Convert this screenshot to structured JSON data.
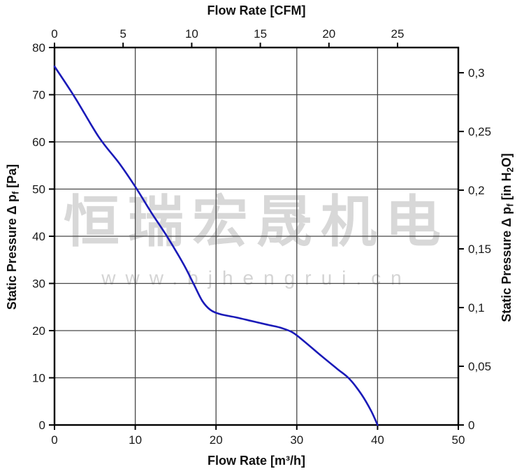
{
  "chart_data": {
    "type": "line",
    "title": "",
    "grid": true,
    "legend": false,
    "bottom_axis": {
      "title": "Flow Rate [m³/h]",
      "min": 0,
      "max": 50,
      "tick_values": [
        0,
        10,
        20,
        30,
        40,
        50
      ],
      "tick_labels": [
        "0",
        "10",
        "20",
        "30",
        "40",
        "50"
      ],
      "grid_values": [
        10,
        20,
        30,
        40
      ]
    },
    "left_axis": {
      "title_p1": "Static Pressure Δ p",
      "title_sub": "f",
      "title_p2": " [Pa]",
      "min": 0,
      "max": 80,
      "tick_values": [
        0,
        10,
        20,
        30,
        40,
        50,
        60,
        70,
        80
      ],
      "tick_labels": [
        "0",
        "10",
        "20",
        "30",
        "40",
        "50",
        "60",
        "70",
        "80"
      ],
      "grid_values": [
        10,
        20,
        30,
        40,
        50,
        60,
        70
      ]
    },
    "top_axis": {
      "title": "Flow Rate [CFM]",
      "tick_values": [
        0,
        5,
        10,
        15,
        20,
        25
      ],
      "tick_labels": [
        "0",
        "5",
        "10",
        "15",
        "20",
        "25"
      ],
      "to_m3h": 1.699
    },
    "right_axis": {
      "title_p1": "Static Pressure Δ p",
      "title_sub": "f",
      "title_p2": " [in H",
      "title_sub2": "2",
      "title_p3": "O]",
      "tick_values": [
        0,
        0.05,
        0.1,
        0.15,
        0.2,
        0.25,
        0.3
      ],
      "tick_labels": [
        "0",
        "0,05",
        "0,1",
        "0,15",
        "0,2",
        "0,25",
        "0,3"
      ],
      "to_pa": 248.84
    },
    "series": [
      {
        "name": "fan performance curve",
        "color": "#1a1ab8",
        "points": [
          [
            0,
            76
          ],
          [
            2.5,
            69.5
          ],
          [
            5.5,
            61
          ],
          [
            8,
            55.5
          ],
          [
            10,
            50.5
          ],
          [
            12,
            45
          ],
          [
            14,
            39.8
          ],
          [
            16,
            34
          ],
          [
            17.2,
            30
          ],
          [
            18.3,
            26.3
          ],
          [
            19.3,
            24.4
          ],
          [
            20.5,
            23.5
          ],
          [
            22.5,
            22.8
          ],
          [
            24.5,
            22
          ],
          [
            26.5,
            21.2
          ],
          [
            28,
            20.6
          ],
          [
            29.5,
            19.6
          ],
          [
            31,
            17.6
          ],
          [
            33,
            14.7
          ],
          [
            35,
            11.9
          ],
          [
            36.5,
            9.8
          ],
          [
            38,
            6.5
          ],
          [
            39.2,
            3
          ],
          [
            40,
            0
          ]
        ]
      }
    ],
    "colors": {
      "curve": "#1a1ab8",
      "grid": "#474747",
      "axis": "#000000",
      "text": "#1a1a1a",
      "watermark_cn": "#d8d8d8",
      "watermark_url": "#d4d4d4"
    }
  },
  "watermark": {
    "line1": "恒瑞宏晟机电",
    "line2": "www.bjhengrui.cn"
  }
}
